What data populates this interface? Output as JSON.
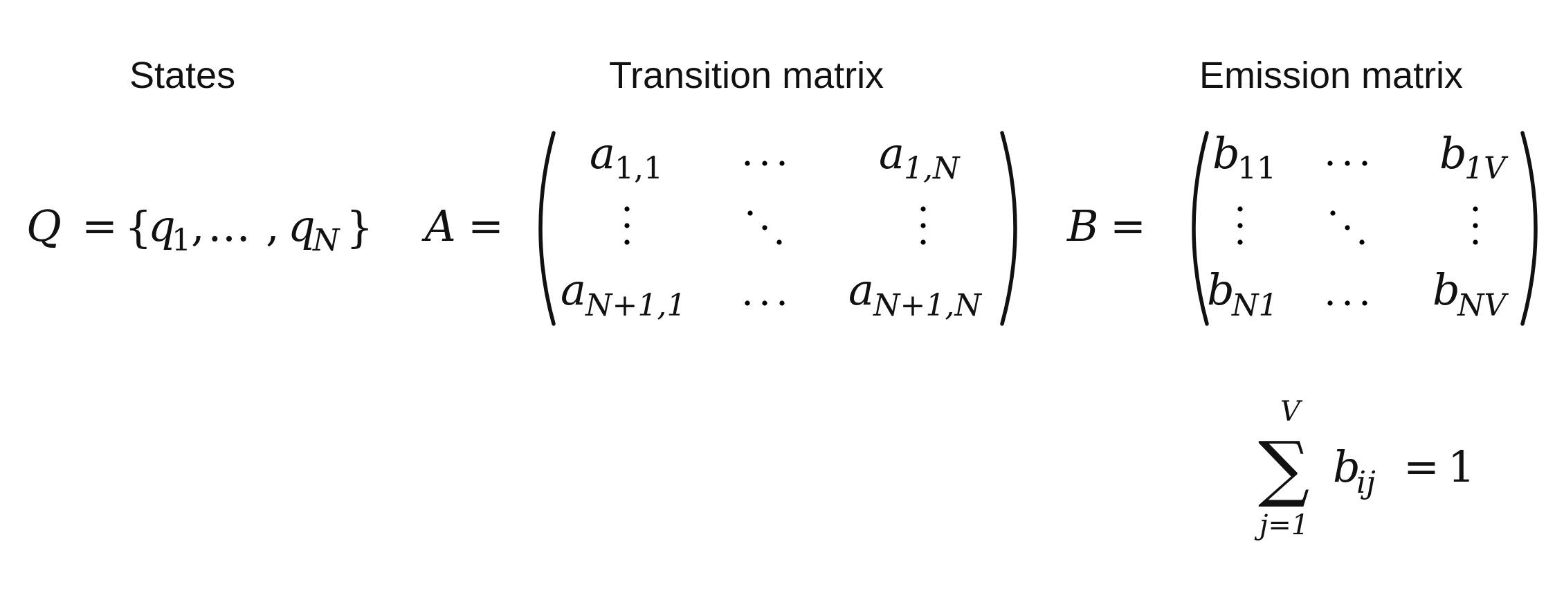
{
  "headings": {
    "states": "States",
    "transition": "Transition matrix",
    "emission": "Emission matrix"
  },
  "states_eq": {
    "lhs": "Q",
    "eq": "=",
    "open": "{",
    "q1_base": "q",
    "q1_sub": "1",
    "comma1": ",",
    "ellipsis": "…",
    "comma2": ",",
    "qn_base": "q",
    "qn_sub": "N",
    "close": "}"
  },
  "transition_eq": {
    "lhs": "A",
    "eq": "=",
    "a11_base": "a",
    "a11_sub": "1,1",
    "a1n_base": "a",
    "a1n_sub": "1,N",
    "an1_base": "a",
    "an1_sub": "N+1,1",
    "ann_base": "a",
    "ann_sub": "N+1,N"
  },
  "emission_eq": {
    "lhs": "B",
    "eq": "=",
    "b11_base": "b",
    "b11_sub": "11",
    "b1v_base": "b",
    "b1v_sub": "1V",
    "bn1_base": "b",
    "bn1_sub": "N1",
    "bnv_base": "b",
    "bnv_sub": "NV"
  },
  "sum_eq": {
    "sigma": "∑",
    "upper": "V",
    "lower": "j=1",
    "term_base": "b",
    "term_sub": "ij",
    "eq": "=",
    "rhs": "1"
  }
}
